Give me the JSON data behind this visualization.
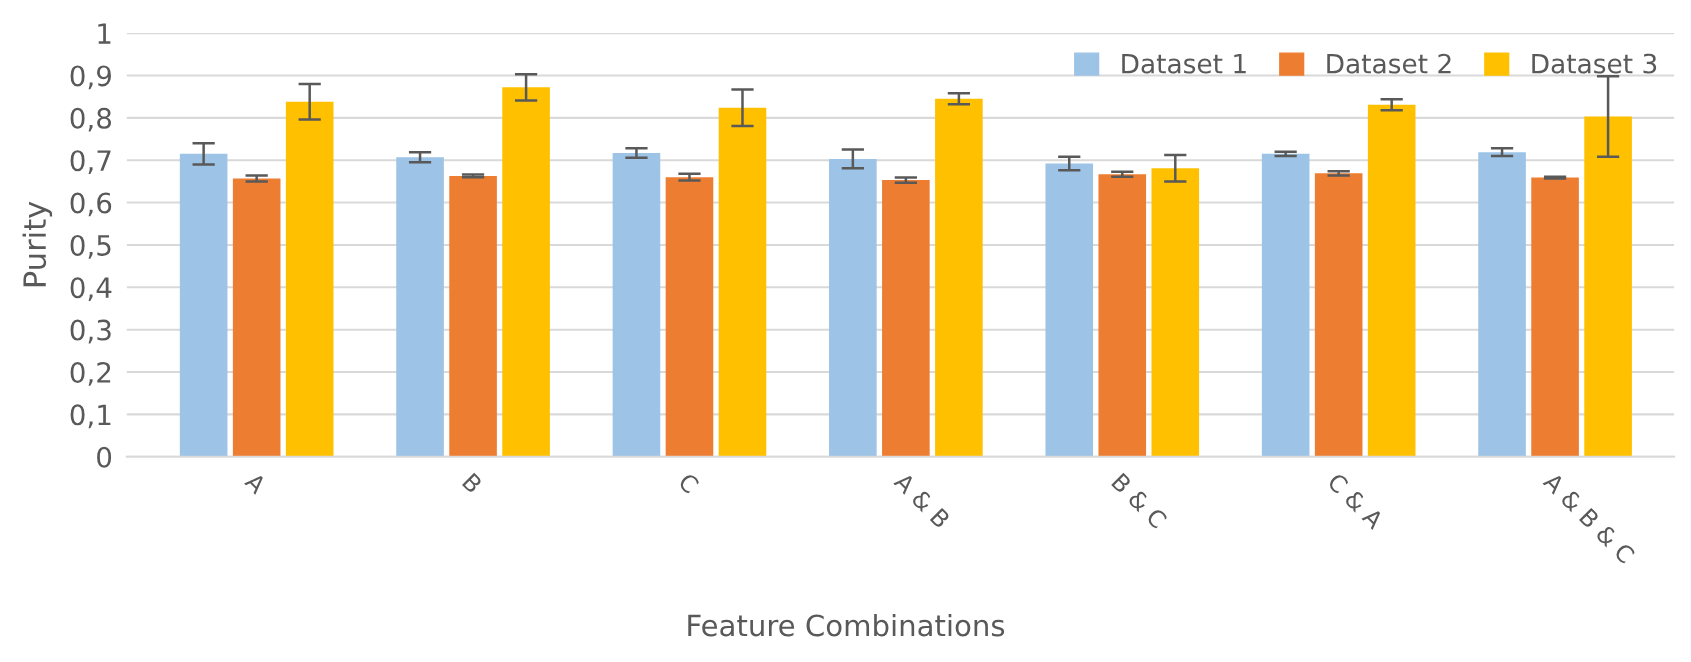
{
  "chart_data": {
    "type": "bar",
    "xlabel": "Feature Combinations",
    "ylabel": "Purity",
    "categories": [
      "A",
      "B",
      "C",
      "A & B",
      "B & C",
      "C & A",
      "A & B & C"
    ],
    "series": [
      {
        "name": "Dataset 1",
        "color": "#9dc3e6",
        "values": [
          0.715,
          0.707,
          0.717,
          0.703,
          0.692,
          0.715,
          0.719
        ],
        "errors": [
          0.025,
          0.012,
          0.011,
          0.022,
          0.016,
          0.005,
          0.009
        ]
      },
      {
        "name": "Dataset 2",
        "color": "#ed7d31",
        "values": [
          0.657,
          0.663,
          0.66,
          0.653,
          0.667,
          0.669,
          0.659
        ],
        "errors": [
          0.007,
          0.003,
          0.008,
          0.006,
          0.006,
          0.005,
          0.002
        ]
      },
      {
        "name": "Dataset 3",
        "color": "#ffc000",
        "values": [
          0.838,
          0.872,
          0.824,
          0.845,
          0.681,
          0.831,
          0.803
        ],
        "errors": [
          0.042,
          0.031,
          0.043,
          0.013,
          0.031,
          0.013,
          0.095
        ]
      }
    ],
    "ylim": [
      0,
      1
    ],
    "yticks": [
      0,
      {
        "value": 0.1,
        "label": "0,1"
      },
      {
        "value": 0.2,
        "label": "0,2"
      },
      {
        "value": 0.3,
        "label": "0,3"
      },
      {
        "value": 0.4,
        "label": "0,4"
      },
      {
        "value": 0.5,
        "label": "0,5"
      },
      {
        "value": 0.6,
        "label": "0,6"
      },
      {
        "value": 0.7,
        "label": "0,7"
      },
      {
        "value": 0.8,
        "label": "0,8"
      },
      {
        "value": 0.9,
        "label": "0,9"
      },
      1
    ],
    "grid": "y",
    "legend": "top right"
  }
}
